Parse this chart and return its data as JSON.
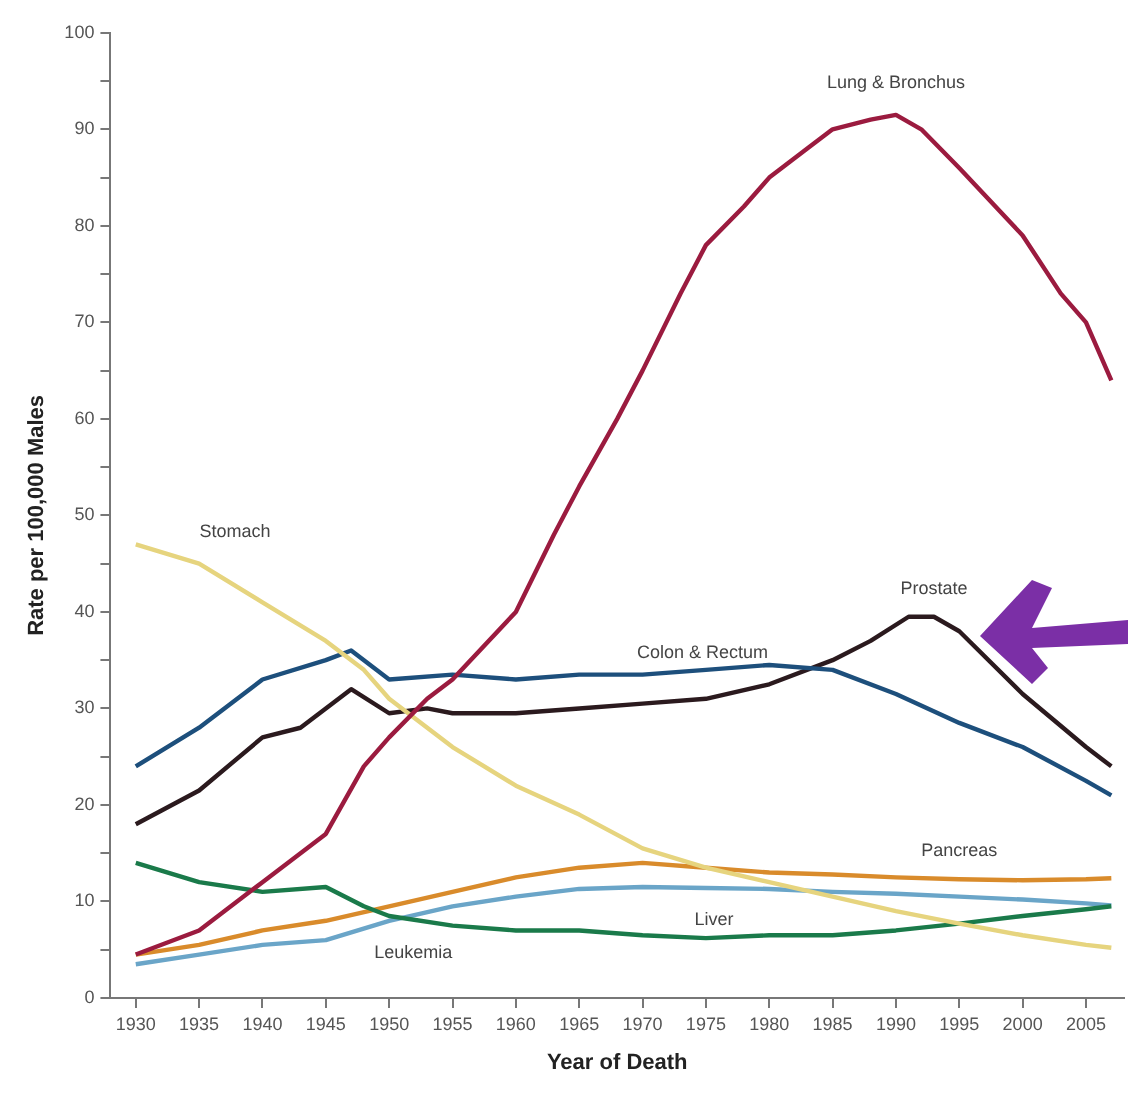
{
  "chart_data": {
    "type": "line",
    "xlabel": "Year of Death",
    "ylabel": "Rate per 100,000 Males",
    "xlim": [
      1928,
      2008
    ],
    "xticks": [
      1930,
      1935,
      1940,
      1945,
      1950,
      1955,
      1960,
      1965,
      1970,
      1975,
      1980,
      1985,
      1990,
      1995,
      2000,
      2005
    ],
    "ylim": [
      0,
      100
    ],
    "yticks": [
      0,
      {
        "value": 5,
        "label": null
      },
      10,
      {
        "value": 15,
        "label": null
      },
      20,
      {
        "value": 25,
        "label": null
      },
      30,
      {
        "value": 35,
        "label": null
      },
      40,
      {
        "value": 45,
        "label": null
      },
      50,
      {
        "value": 55,
        "label": null
      },
      60,
      {
        "value": 65,
        "label": null
      },
      70,
      {
        "value": 75,
        "label": null
      },
      80,
      {
        "value": 85,
        "label": null
      },
      90,
      {
        "value": 95,
        "label": null
      },
      100
    ],
    "grid": false,
    "legend": false,
    "marker": "none",
    "line_style": "solid",
    "series": [
      {
        "name": "Lung & Bronchus",
        "color": "#9b1b3f",
        "x": [
          1930,
          1935,
          1940,
          1945,
          1948,
          1950,
          1953,
          1955,
          1960,
          1963,
          1965,
          1968,
          1970,
          1973,
          1975,
          1978,
          1980,
          1983,
          1985,
          1988,
          1990,
          1992,
          1995,
          2000,
          2003,
          2005,
          2007
        ],
        "values": [
          4.5,
          7,
          12,
          17,
          24,
          27,
          31,
          33,
          40,
          48,
          53,
          60,
          65,
          73,
          78,
          82,
          85,
          88,
          90,
          91,
          91.5,
          90,
          86,
          79,
          73,
          70,
          64
        ]
      },
      {
        "name": "Stomach",
        "color": "#e6d47e",
        "x": [
          1930,
          1935,
          1940,
          1945,
          1948,
          1950,
          1955,
          1960,
          1965,
          1970,
          1975,
          1980,
          1985,
          1990,
          1995,
          2000,
          2005,
          2007
        ],
        "values": [
          47,
          45,
          41,
          37,
          34,
          31,
          26,
          22,
          19,
          15.5,
          13.5,
          12,
          10.5,
          9,
          7.7,
          6.5,
          5.5,
          5.2
        ]
      },
      {
        "name": "Colon & Rectum",
        "color": "#1d4f7c",
        "x": [
          1930,
          1935,
          1940,
          1945,
          1947,
          1950,
          1955,
          1960,
          1965,
          1970,
          1975,
          1980,
          1985,
          1990,
          1995,
          2000,
          2005,
          2007
        ],
        "values": [
          24,
          28,
          33,
          35,
          36,
          33,
          33.5,
          33,
          33.5,
          33.5,
          34,
          34.5,
          34,
          31.5,
          28.5,
          26,
          22.5,
          21
        ]
      },
      {
        "name": "Prostate",
        "color": "#2b1a1e",
        "x": [
          1930,
          1935,
          1940,
          1943,
          1947,
          1950,
          1953,
          1955,
          1960,
          1965,
          1970,
          1975,
          1980,
          1985,
          1988,
          1991,
          1993,
          1995,
          2000,
          2005,
          2007
        ],
        "values": [
          18,
          21.5,
          27,
          28,
          32,
          29.5,
          30,
          29.5,
          29.5,
          30,
          30.5,
          31,
          32.5,
          35,
          37,
          39.5,
          39.5,
          38,
          31.5,
          26,
          24
        ]
      },
      {
        "name": "Liver",
        "color": "#1a7a4a",
        "x": [
          1930,
          1935,
          1940,
          1945,
          1948,
          1950,
          1955,
          1960,
          1965,
          1970,
          1975,
          1980,
          1985,
          1990,
          1995,
          2000,
          2005,
          2007
        ],
        "values": [
          14,
          12,
          11,
          11.5,
          9.5,
          8.5,
          7.5,
          7,
          7,
          6.5,
          6.2,
          6.5,
          6.5,
          7,
          7.7,
          8.5,
          9.2,
          9.5
        ]
      },
      {
        "name": "Pancreas",
        "color": "#d98b2b",
        "x": [
          1930,
          1935,
          1940,
          1945,
          1950,
          1955,
          1960,
          1965,
          1970,
          1975,
          1980,
          1985,
          1990,
          1995,
          2000,
          2005,
          2007
        ],
        "values": [
          4.5,
          5.5,
          7,
          8,
          9.5,
          11,
          12.5,
          13.5,
          14,
          13.5,
          13,
          12.8,
          12.5,
          12.3,
          12.2,
          12.3,
          12.4
        ]
      },
      {
        "name": "Leukemia",
        "color": "#6aa5c8",
        "x": [
          1930,
          1935,
          1940,
          1945,
          1950,
          1955,
          1960,
          1965,
          1970,
          1975,
          1980,
          1985,
          1990,
          1995,
          2000,
          2005,
          2007
        ],
        "values": [
          3.5,
          4.5,
          5.5,
          6,
          8,
          9.5,
          10.5,
          11.3,
          11.5,
          11.4,
          11.3,
          11,
          10.8,
          10.5,
          10.2,
          9.8,
          9.6
        ]
      }
    ]
  }
}
